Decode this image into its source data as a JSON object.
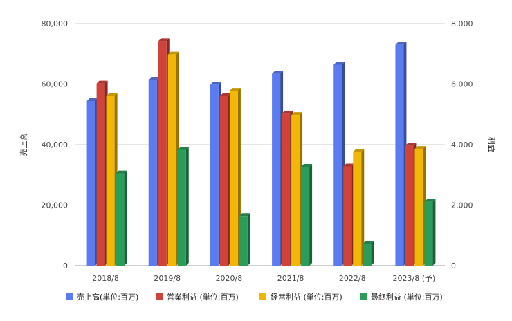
{
  "chart_data": {
    "type": "bar",
    "title": "",
    "categories": [
      "2018/8",
      "2019/8",
      "2020/8",
      "2021/8",
      "2022/8",
      "2023/8 (予)"
    ],
    "ylabel": "売上高",
    "y2label": "利益",
    "ylim": [
      0,
      80000
    ],
    "y2lim": [
      0,
      8000
    ],
    "yticks": [
      "0",
      "20,000",
      "40,000",
      "60,000",
      "80,000"
    ],
    "y2ticks": [
      "0",
      "2,000",
      "4,000",
      "6,000",
      "8,000"
    ],
    "grid": true,
    "legend_position": "bottom",
    "series": [
      {
        "name": "売上高(単位:百万)",
        "axis": "left",
        "color": "#5b7cf0",
        "values": [
          54400,
          61300,
          59800,
          63400,
          66400,
          73000
        ]
      },
      {
        "name": "営業利益 (単位:百万)",
        "axis": "right",
        "color": "#d0433a",
        "values": [
          6020,
          7420,
          5600,
          5020,
          3280,
          3960
        ]
      },
      {
        "name": "経常利益 (単位:百万)",
        "axis": "right",
        "color": "#f2b705",
        "values": [
          5600,
          6980,
          5780,
          4980,
          3760,
          3860
        ]
      },
      {
        "name": "最終利益 (単位:百万)",
        "axis": "right",
        "color": "#2a9d5b",
        "values": [
          3050,
          3830,
          1640,
          3270,
          720,
          2110
        ]
      }
    ]
  }
}
